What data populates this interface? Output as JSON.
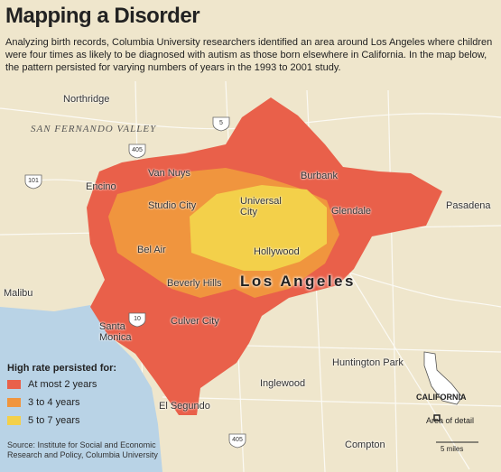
{
  "header": {
    "title": "Mapping a Disorder",
    "description": "Analyzing birth records, Columbia University researchers identified an area around Los Angeles where children were four times as likely to be diagnosed with autism as those born elsewhere in California. In the map below, the pattern persisted for varying numbers of years in the 1993 to 2001 study."
  },
  "map": {
    "region_label": "SAN FERNANDO VALLEY",
    "city_label": "Los Angeles",
    "places": [
      "Northridge",
      "Van Nuys",
      "Encino",
      "Burbank",
      "Studio City",
      "Universal City",
      "Glendale",
      "Pasadena",
      "Bel Air",
      "Hollywood",
      "Beverly Hills",
      "Malibu",
      "Santa Monica",
      "Culver City",
      "Huntington Park",
      "Inglewood",
      "El Segundo",
      "Compton"
    ],
    "highways": [
      "5",
      "405",
      "101",
      "10",
      "405"
    ]
  },
  "legend": {
    "title": "High rate persisted for:",
    "items": [
      {
        "label": "At most 2 years",
        "color": "#e9604a"
      },
      {
        "label": "3 to 4 years",
        "color": "#f0953e"
      },
      {
        "label": "5 to 7 years",
        "color": "#f3d04a"
      }
    ]
  },
  "inset": {
    "state": "CALIFORNIA",
    "detail": "Area of detail",
    "scale": "5 miles"
  },
  "source": "Source: Institute for Social and Economic Research and Policy, Columbia University"
}
